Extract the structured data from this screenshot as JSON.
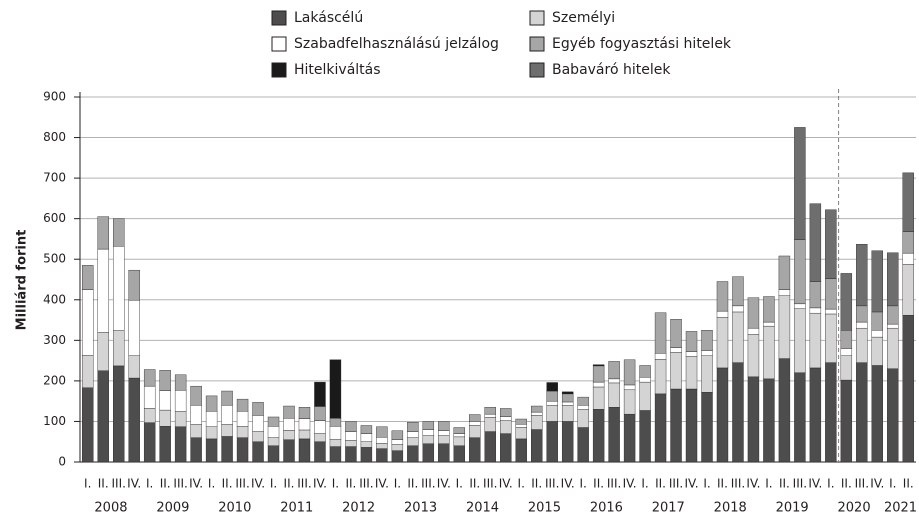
{
  "chart_data": {
    "type": "stacked_bar",
    "y_label": "Milliárd forint",
    "categories": [
      "I.",
      "II.",
      "III.",
      "IV.",
      "I.",
      "II.",
      "III.",
      "IV.",
      "I.",
      "II.",
      "III.",
      "IV.",
      "I.",
      "II.",
      "III.",
      "IV.",
      "I.",
      "II.",
      "III.",
      "IV.",
      "I.",
      "II.",
      "III.",
      "IV.",
      "I.",
      "II.",
      "III.",
      "IV.",
      "I.",
      "II.",
      "III.",
      "IV.",
      "I.",
      "II.",
      "III.",
      "IV.",
      "I.",
      "II.",
      "III.",
      "IV.",
      "I.",
      "II.",
      "III.",
      "IV.",
      "I.",
      "II.",
      "III.",
      "IV.",
      "I.",
      "II.",
      "III.",
      "IV.",
      "I.",
      "II."
    ],
    "years": [
      "2008",
      "2009",
      "2010",
      "2011",
      "2012",
      "2013",
      "2014",
      "2015",
      "2016",
      "2017",
      "2018",
      "2019",
      "2020",
      "2021"
    ],
    "ylim": [
      0,
      900
    ],
    "yticks": [
      0,
      100,
      200,
      300,
      400,
      500,
      600,
      700,
      800,
      900
    ],
    "grid": true,
    "series": [
      {
        "name": "Lakáscélú",
        "color": "#4d4d4d",
        "values": [
          183,
          225,
          237,
          207,
          97,
          88,
          87,
          60,
          57,
          63,
          60,
          50,
          40,
          55,
          57,
          50,
          38,
          38,
          36,
          33,
          28,
          40,
          45,
          45,
          40,
          60,
          75,
          70,
          57,
          80,
          100,
          100,
          85,
          130,
          135,
          118,
          127,
          168,
          180,
          180,
          172,
          232,
          245,
          210,
          205,
          255,
          220,
          232,
          245,
          202,
          245,
          238,
          230,
          362
        ]
      },
      {
        "name": "Személyi",
        "color": "#d4d4d4",
        "values": [
          80,
          95,
          87,
          55,
          35,
          40,
          38,
          33,
          30,
          30,
          28,
          25,
          20,
          23,
          22,
          20,
          18,
          15,
          14,
          13,
          15,
          20,
          20,
          20,
          22,
          30,
          35,
          32,
          28,
          35,
          40,
          40,
          45,
          55,
          60,
          60,
          70,
          85,
          90,
          80,
          90,
          125,
          125,
          105,
          130,
          155,
          158,
          135,
          120,
          60,
          85,
          70,
          100,
          125
        ]
      },
      {
        "name": "Szabadfelhasználású jelzálog",
        "color": "#ffffff",
        "values": [
          162,
          205,
          208,
          137,
          55,
          48,
          52,
          47,
          38,
          47,
          37,
          40,
          28,
          30,
          28,
          32,
          32,
          22,
          20,
          15,
          12,
          15,
          15,
          12,
          8,
          10,
          8,
          10,
          8,
          8,
          10,
          8,
          10,
          12,
          10,
          12,
          12,
          15,
          12,
          12,
          13,
          15,
          15,
          15,
          10,
          15,
          12,
          13,
          12,
          18,
          15,
          17,
          10,
          28
        ]
      },
      {
        "name": "Egyéb fogyasztási hitelek",
        "color": "#a6a6a6",
        "values": [
          60,
          80,
          68,
          74,
          41,
          50,
          38,
          47,
          38,
          35,
          30,
          32,
          23,
          30,
          28,
          35,
          20,
          25,
          20,
          26,
          22,
          23,
          20,
          23,
          15,
          17,
          17,
          20,
          13,
          15,
          25,
          20,
          20,
          40,
          43,
          62,
          29,
          100,
          70,
          50,
          50,
          73,
          72,
          75,
          63,
          83,
          158,
          65,
          75,
          45,
          40,
          45,
          45,
          53
        ]
      },
      {
        "name": "Hitelkiváltás",
        "color": "#1a1a1a",
        "values": [
          0,
          0,
          0,
          0,
          0,
          0,
          0,
          0,
          0,
          0,
          0,
          0,
          0,
          0,
          0,
          60,
          144,
          0,
          0,
          0,
          0,
          0,
          0,
          0,
          0,
          0,
          0,
          0,
          0,
          0,
          21,
          5,
          0,
          3,
          0,
          0,
          0,
          0,
          0,
          0,
          0,
          0,
          0,
          0,
          0,
          0,
          0,
          0,
          0,
          0,
          0,
          0,
          0,
          0
        ]
      },
      {
        "name": "Babaváró hitelek",
        "color": "#6e6e6e",
        "values": [
          0,
          0,
          0,
          0,
          0,
          0,
          0,
          0,
          0,
          0,
          0,
          0,
          0,
          0,
          0,
          0,
          0,
          0,
          0,
          0,
          0,
          0,
          0,
          0,
          0,
          0,
          0,
          0,
          0,
          0,
          0,
          0,
          0,
          0,
          0,
          0,
          0,
          0,
          0,
          0,
          0,
          0,
          0,
          0,
          0,
          0,
          277,
          192,
          170,
          140,
          152,
          151,
          131,
          145
        ]
      }
    ]
  }
}
